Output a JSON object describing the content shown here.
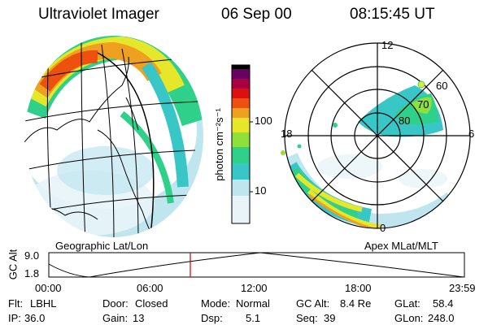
{
  "header": {
    "instrument": "Ultraviolet Imager",
    "date": "06 Sep 00",
    "time": "08:15:45 UT"
  },
  "colorbar": {
    "label": "photon cm⁻²s⁻¹",
    "ticks": [
      "100",
      "10"
    ],
    "scale": "log"
  },
  "geo_panel": {
    "caption": "Geographic Lat/Lon"
  },
  "polar_panel": {
    "caption": "Apex MLat/MLT",
    "mlt_labels": [
      "12",
      "18",
      "6",
      "0"
    ],
    "mlat_labels": [
      "60",
      "70",
      "80"
    ]
  },
  "altitude_plot": {
    "ylabel": "GC Alt",
    "yticks": [
      "9.0",
      "1.8"
    ],
    "xticks": [
      "00:00",
      "06:00",
      "12:00",
      "18:00",
      "23:59"
    ],
    "current_time_marker": "08:15:45"
  },
  "status": {
    "row1": [
      {
        "label": "Flt:",
        "value": "LBHL"
      },
      {
        "label": "Door:",
        "value": "Closed"
      },
      {
        "label": "Mode:",
        "value": "Normal"
      },
      {
        "label": "GC Alt:",
        "value": "8.4 Re"
      },
      {
        "label": "GLat:",
        "value": "58.4"
      }
    ],
    "row2": [
      {
        "label": "IP:",
        "value": "36.0"
      },
      {
        "label": "Gain:",
        "value": "13"
      },
      {
        "label": "Dsp:",
        "value": "5.1"
      },
      {
        "label": "Seq:",
        "value": "39"
      },
      {
        "label": "GLon:",
        "value": "248.0"
      }
    ]
  },
  "colors": {
    "background": "#ffffff",
    "marker": "#cc0000",
    "colormap": [
      "#e8f4f8",
      "#bfe6ef",
      "#39c6c6",
      "#2fd18a",
      "#8ee03a",
      "#e6e62a",
      "#f0a020",
      "#ee5010",
      "#dd1010",
      "#aa0040",
      "#6a0060",
      "#000000"
    ]
  }
}
